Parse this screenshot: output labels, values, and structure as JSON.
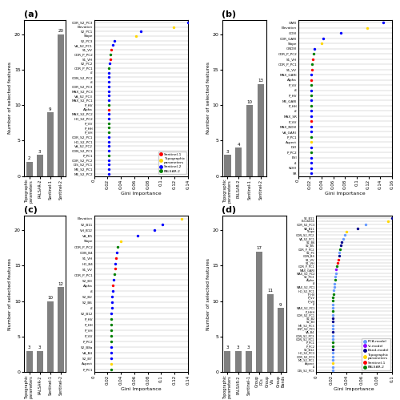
{
  "chart_data": [
    {
      "type": "bar",
      "title": "(a)",
      "categories": [
        "Topographic\nparameters",
        "PALSAR-2",
        "Sentinel-1",
        "Sentinel-2"
      ],
      "values": [
        2,
        3,
        9,
        20
      ],
      "color": "#808080",
      "ylabel": "Number of selected features",
      "ylim": [
        0,
        22
      ],
      "yticks": [
        0,
        5,
        10,
        15,
        20
      ],
      "data_labels": true
    },
    {
      "type": "scatter",
      "orientation": "horizontal",
      "categories": [
        "COR_S2_PC3",
        "Elevation",
        "S2_PC1",
        "Slope",
        "S2_PC3",
        "VA_S2_PC1",
        "S1_VV",
        "COR_P_PC2",
        "S1_VH",
        "S2_PC2",
        "COR_P_PC1",
        "i2",
        "CON_S2_PC2",
        "i3",
        "COR_S2_PC3",
        "MAX_S2_PC3",
        "VA_S2_PC3",
        "MAX_S2_PC1",
        "P_HV",
        "Alpha",
        "MAX_S2_PC2",
        "HO_S2_PC2",
        "P_VV",
        "P_HH",
        "P_VH",
        "COR_S2_PC1",
        "HO_S2_PC1",
        "VA_S2_PC2",
        "CON_S2_PC1",
        "P_PC1",
        "COR_S2_PC2",
        "DIS_S2_PC1",
        "ME_S2_PC1",
        "ME_S2_PC2"
      ],
      "series": [
        {
          "name": "Sentinel-1",
          "color": "#FF0000",
          "values": [
            null,
            null,
            null,
            null,
            null,
            null,
            0.026,
            null,
            0.024,
            null,
            null,
            null,
            null,
            null,
            null,
            null,
            null,
            null,
            null,
            0.022,
            null,
            null,
            null,
            null,
            null,
            null,
            null,
            null,
            null,
            null,
            null,
            null,
            null,
            null
          ]
        },
        {
          "name": "Topographic\nparameters",
          "color": "#FFD700",
          "values": [
            null,
            0.119,
            null,
            0.063,
            null,
            null,
            null,
            null,
            null,
            null,
            null,
            null,
            null,
            null,
            null,
            null,
            null,
            null,
            null,
            null,
            null,
            null,
            null,
            null,
            null,
            null,
            null,
            null,
            null,
            null,
            null,
            null,
            null,
            null
          ]
        },
        {
          "name": "Sentinel-2",
          "color": "#0000FF",
          "values": [
            0.14,
            null,
            0.07,
            null,
            0.03,
            0.028,
            null,
            null,
            null,
            0.023,
            null,
            0.022,
            0.022,
            0.022,
            0.022,
            0.022,
            0.022,
            0.022,
            null,
            null,
            0.022,
            0.022,
            null,
            null,
            null,
            0.022,
            0.022,
            0.022,
            0.022,
            null,
            0.022,
            0.022,
            0.022,
            0.022
          ]
        },
        {
          "name": "PALSAR-2",
          "color": "#008000",
          "values": [
            null,
            null,
            null,
            null,
            null,
            null,
            null,
            0.025,
            null,
            null,
            0.022,
            null,
            null,
            null,
            null,
            null,
            null,
            null,
            0.022,
            null,
            null,
            null,
            0.022,
            0.022,
            0.022,
            null,
            null,
            null,
            null,
            0.022,
            null,
            null,
            null,
            null
          ]
        }
      ],
      "xlabel": "Gini Importance",
      "xlim": [
        0,
        0.14
      ],
      "xticks": [
        0,
        0.02,
        0.04,
        0.06,
        0.08,
        0.1,
        0.12,
        0.14
      ],
      "grid": true,
      "legend": "lower right"
    },
    {
      "type": "bar",
      "title": "(b)",
      "categories": [
        "Topographic\nparameters",
        "PALSAR-2",
        "Sentinel-1",
        "Sentinel-2"
      ],
      "values": [
        3,
        4,
        10,
        13
      ],
      "color": "#808080",
      "ylabel": "Number of selected features",
      "ylim": [
        0,
        22
      ],
      "yticks": [
        0,
        5,
        10,
        15,
        20
      ],
      "data_labels": true
    },
    {
      "type": "scatter",
      "orientation": "horizontal",
      "categories": [
        "GARI",
        "Elevation",
        "GDVI",
        "COR_GARI",
        "Slope",
        "GNDVI",
        "COR_P_PC2",
        "S1_VH",
        "COR_P_PC1",
        "S1_VV",
        "MAX_GARI",
        "Alpha",
        "P_VV",
        "i3",
        "P_HV",
        "ME_GARI",
        "P_HH",
        "i2",
        "MAX_SR",
        "P_VV",
        "MAX_NDVI",
        "VA_GARI",
        "P_PC1",
        "Aspect",
        "DVI",
        "P_PC2",
        "EVI",
        "i1",
        "NDVI",
        "SR"
      ],
      "values": [
        0.145,
        0.118,
        0.073,
        0.043,
        0.04,
        0.028,
        0.026,
        0.025,
        0.024,
        0.024,
        0.023,
        0.022,
        0.022,
        0.022,
        0.022,
        0.022,
        0.022,
        0.022,
        0.022,
        0.022,
        0.022,
        0.022,
        0.022,
        0.022,
        0.022,
        0.022,
        0.022,
        0.022,
        0.022,
        0.022
      ],
      "colors": [
        "#0000FF",
        "#FFD700",
        "#0000FF",
        "#0000FF",
        "#FFD700",
        "#0000FF",
        "#008000",
        "#FF0000",
        "#008000",
        "#FF0000",
        "#0000FF",
        "#FF0000",
        "#008000",
        "#0000FF",
        "#008000",
        "#0000FF",
        "#008000",
        "#0000FF",
        "#0000FF",
        "#FF0000",
        "#0000FF",
        "#0000FF",
        "#008000",
        "#FFD700",
        "#0000FF",
        "#008000",
        "#0000FF",
        "#0000FF",
        "#0000FF",
        "#0000FF"
      ],
      "xlabel": "Gini Importance",
      "xlim": [
        0,
        0.16
      ],
      "xticks": [
        0,
        0.02,
        0.04,
        0.06,
        0.08,
        0.1,
        0.12,
        0.14,
        0.16
      ],
      "grid": true
    },
    {
      "type": "bar",
      "title": "(c)",
      "categories": [
        "Topographic\nparameters",
        "PALSAR-2",
        "Sentinel-1",
        "Sentinel-2"
      ],
      "values": [
        3,
        3,
        10,
        12
      ],
      "color": "#808080",
      "ylabel": "Number of selected features",
      "ylim": [
        0,
        22
      ],
      "yticks": [
        0,
        5,
        10,
        15,
        20
      ],
      "data_labels": true
    },
    {
      "type": "scatter",
      "orientation": "horizontal",
      "categories": [
        "Elevation",
        "S2_B11",
        "VH_B12",
        "VA_B5",
        "Slope",
        "COR_P_PC2",
        "CON_B4",
        "S1_VH",
        "HO_B4",
        "S1_VV",
        "COR_P_PC1",
        "S2_B3",
        "Alpha",
        "i3",
        "S2_B2",
        "S2_B6",
        "i2",
        "S2_B12",
        "P_HV",
        "P_HH",
        "P_VH",
        "P_VV",
        "P_PC2",
        "S2_B8a",
        "VA_B4",
        "S2_B7",
        "Aspect",
        "P_PC1"
      ],
      "values": [
        0.13,
        0.102,
        0.09,
        0.065,
        0.04,
        0.035,
        0.034,
        0.033,
        0.032,
        0.031,
        0.03,
        0.029,
        0.028,
        0.028,
        0.027,
        0.027,
        0.027,
        0.026,
        0.026,
        0.026,
        0.026,
        0.026,
        0.026,
        0.026,
        0.026,
        0.026,
        0.026,
        0.026
      ],
      "colors": [
        "#FFD700",
        "#0000FF",
        "#0000FF",
        "#0000FF",
        "#FFD700",
        "#008000",
        "#0000FF",
        "#FF0000",
        "#0000FF",
        "#FF0000",
        "#008000",
        "#0000FF",
        "#FF0000",
        "#0000FF",
        "#0000FF",
        "#0000FF",
        "#0000FF",
        "#0000FF",
        "#008000",
        "#008000",
        "#008000",
        "#008000",
        "#008000",
        "#0000FF",
        "#0000FF",
        "#0000FF",
        "#FFD700",
        "#008000"
      ],
      "xlabel": "Gini Importance",
      "xlim": [
        0,
        0.14
      ],
      "xticks": [
        0,
        0.02,
        0.04,
        0.06,
        0.08,
        0.1,
        0.12,
        0.14
      ],
      "grid": true
    },
    {
      "type": "bar",
      "title": "(d)",
      "categories": [
        "Topographic\nparameters",
        "PALSAR-2",
        "Sentinel-1",
        "Group\nPCs",
        "Group\nVIs",
        "Group\nBands"
      ],
      "values": [
        3,
        3,
        3,
        17,
        11,
        9
      ],
      "color": "#808080",
      "ylabel": "Number of selected features",
      "ylim": [
        0,
        22
      ],
      "yticks": [
        0,
        5,
        10,
        15,
        20
      ],
      "data_labels": true
    },
    {
      "type": "scatter",
      "orientation": "horizontal",
      "categories": [
        "S2_B11",
        "Elevation",
        "COR_S2_PC3",
        "VA_B11",
        "Slope",
        "CON_S2_PC2",
        "VA_S2_PC1",
        "S2_B6",
        "S2_B5",
        "CDR_P_PC2",
        "S2_PC",
        "CON_B4",
        "S1_VV",
        "S1_VH",
        "COR_P_PC1",
        "MAX_GARI",
        "MAX_S2_PC2",
        "S2_PC3",
        "Alpha",
        "i3",
        "MAX_S2_PC1",
        "HO_S2_PC1",
        "P_HV",
        "P_VV",
        "P_VH",
        "i2",
        "MAX_S2_PC1",
        "P_HHH",
        "COR_S2_PC1",
        "S2_B2",
        "S2_B3",
        "ME_S2_PC3",
        "ENT_S2_PC1",
        "VA_B4",
        "CON_S2_PC3",
        "CON_S2_PC1",
        "P_PC1",
        "P_PC2",
        "S2_B12",
        "HO_S2_PC3",
        "COR_S2_PC3",
        "ME_S2_PC1",
        "Aspect",
        "i1",
        "DIS_S2_PC3"
      ],
      "series": [
        {
          "name": "PCA-model",
          "color": "#6699FF",
          "values": [
            null,
            null,
            0.065,
            null,
            null,
            0.038,
            0.036,
            null,
            null,
            null,
            0.031,
            null,
            null,
            null,
            null,
            null,
            0.026,
            0.025,
            null,
            0.024,
            0.024,
            0.023,
            null,
            null,
            null,
            0.022,
            0.022,
            null,
            0.022,
            null,
            null,
            0.022,
            0.022,
            null,
            0.022,
            0.022,
            null,
            null,
            null,
            0.022,
            0.022,
            0.022,
            null,
            0.022,
            0.022
          ]
        },
        {
          "name": "VI-model",
          "color": "#8B00FF",
          "values": [
            null,
            null,
            null,
            null,
            null,
            null,
            null,
            null,
            null,
            null,
            null,
            null,
            null,
            null,
            null,
            0.026,
            null,
            null,
            null,
            null,
            null,
            null,
            null,
            null,
            null,
            null,
            null,
            null,
            null,
            null,
            null,
            null,
            null,
            null,
            null,
            null,
            null,
            null,
            null,
            null,
            null,
            null,
            null,
            null,
            null
          ]
        },
        {
          "name": "Band-model",
          "color": "#00008B",
          "values": [
            0.1,
            null,
            null,
            0.055,
            null,
            null,
            null,
            0.034,
            0.033,
            null,
            null,
            0.03,
            null,
            null,
            null,
            null,
            null,
            null,
            null,
            null,
            null,
            null,
            null,
            null,
            null,
            null,
            null,
            null,
            null,
            0.022,
            0.022,
            null,
            null,
            0.022,
            null,
            null,
            null,
            null,
            0.022,
            null,
            null,
            null,
            null,
            null,
            null
          ]
        },
        {
          "name": "Topographic\nparameters",
          "color": "#FFD700",
          "values": [
            null,
            0.095,
            null,
            null,
            0.04,
            null,
            null,
            null,
            null,
            null,
            null,
            null,
            null,
            null,
            null,
            null,
            null,
            null,
            null,
            null,
            null,
            null,
            null,
            null,
            null,
            null,
            null,
            null,
            null,
            null,
            null,
            null,
            null,
            null,
            null,
            null,
            null,
            null,
            null,
            null,
            null,
            null,
            0.022,
            null,
            null
          ]
        },
        {
          "name": "Sentinel-1",
          "color": "#FF0000",
          "values": [
            null,
            null,
            null,
            null,
            null,
            null,
            null,
            null,
            null,
            null,
            null,
            null,
            0.029,
            0.028,
            null,
            null,
            null,
            null,
            null,
            null,
            null,
            null,
            null,
            null,
            null,
            null,
            null,
            null,
            null,
            null,
            null,
            null,
            null,
            null,
            null,
            null,
            null,
            null,
            null,
            null,
            null,
            null,
            null,
            null,
            null
          ]
        },
        {
          "name": "PALSAR-2",
          "color": "#008000",
          "values": [
            null,
            null,
            null,
            null,
            null,
            null,
            null,
            null,
            null,
            0.032,
            null,
            null,
            null,
            null,
            0.027,
            null,
            null,
            null,
            0.025,
            null,
            null,
            null,
            0.023,
            0.022,
            0.022,
            null,
            null,
            0.022,
            null,
            null,
            null,
            null,
            null,
            null,
            null,
            null,
            0.022,
            0.022,
            null,
            null,
            null,
            null,
            null,
            null,
            null
          ]
        }
      ],
      "xlabel": "Gini Importance",
      "xlim": [
        0,
        0.1
      ],
      "xticks": [
        0,
        0.02,
        0.04,
        0.06,
        0.08,
        0.1
      ],
      "grid": true,
      "legend": "lower right"
    }
  ]
}
